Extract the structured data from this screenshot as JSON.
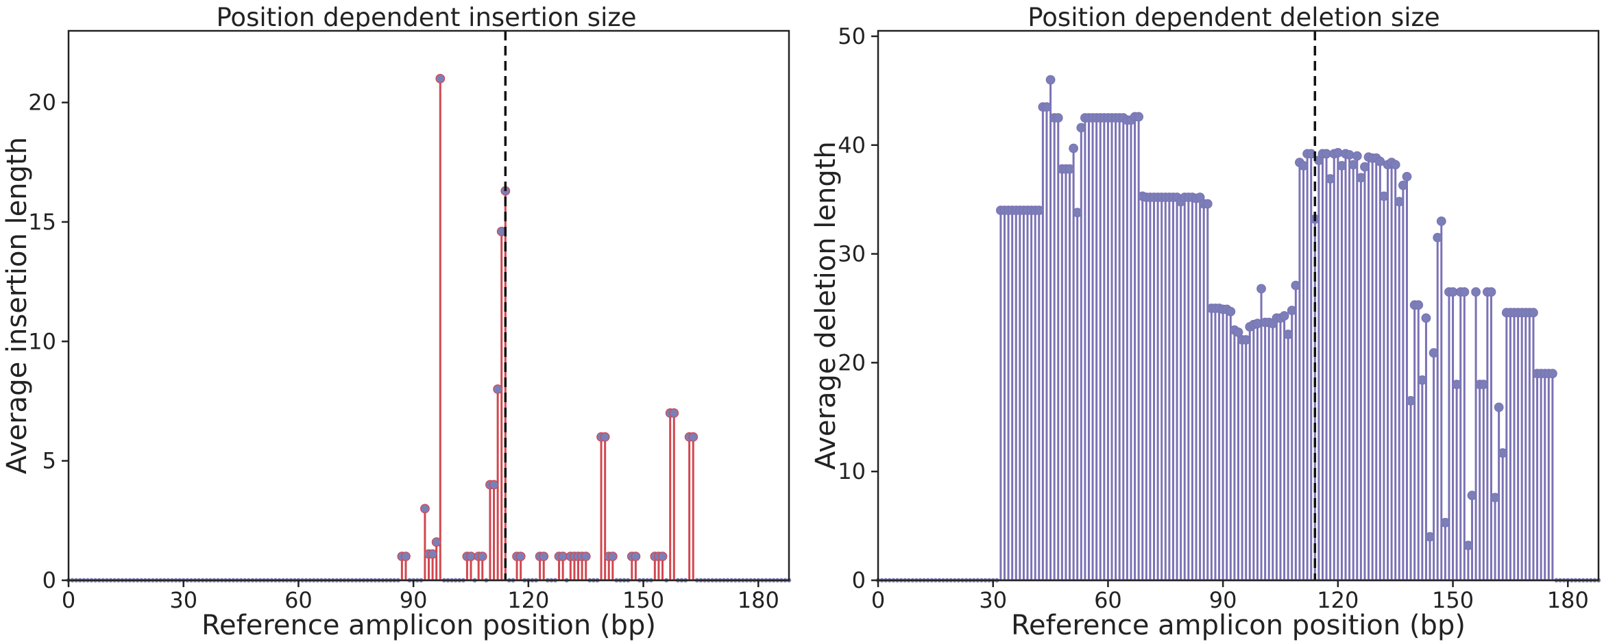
{
  "chart_data": [
    {
      "type": "stem",
      "title": "Position dependent insertion size",
      "xlabel": "Reference amplicon position (bp)",
      "ylabel": "Average insertion length",
      "xlim": [
        0,
        188
      ],
      "ylim": [
        0,
        23
      ],
      "xticks": [
        0,
        30,
        60,
        90,
        120,
        150,
        180
      ],
      "yticks": [
        0,
        5,
        10,
        15,
        20
      ],
      "cut_site": 114,
      "stem_color": "#d1474f",
      "marker_color": "#7b7fb8",
      "grid": false,
      "x_min": 0,
      "x_max": 188,
      "points": [
        [
          87,
          1
        ],
        [
          88,
          1
        ],
        [
          93,
          3
        ],
        [
          94,
          1.1
        ],
        [
          95,
          1.1
        ],
        [
          96,
          1.6
        ],
        [
          97,
          21
        ],
        [
          104,
          1
        ],
        [
          105,
          1
        ],
        [
          107,
          1
        ],
        [
          108,
          1
        ],
        [
          110,
          4
        ],
        [
          111,
          4
        ],
        [
          112,
          8
        ],
        [
          113,
          14.6
        ],
        [
          114,
          16.3
        ],
        [
          117,
          1
        ],
        [
          118,
          1
        ],
        [
          123,
          1
        ],
        [
          124,
          1
        ],
        [
          128,
          1
        ],
        [
          129,
          1
        ],
        [
          131,
          1
        ],
        [
          132,
          1
        ],
        [
          133,
          1
        ],
        [
          134,
          1
        ],
        [
          135,
          1
        ],
        [
          139,
          6
        ],
        [
          140,
          6
        ],
        [
          141,
          1
        ],
        [
          142,
          1
        ],
        [
          147,
          1
        ],
        [
          148,
          1
        ],
        [
          153,
          1
        ],
        [
          154,
          1
        ],
        [
          155,
          1
        ],
        [
          157,
          7
        ],
        [
          158,
          7
        ],
        [
          162,
          6
        ],
        [
          163,
          6
        ]
      ]
    },
    {
      "type": "stem",
      "title": "Position dependent deletion size",
      "xlabel": "Reference amplicon position (bp)",
      "ylabel": "Average deletion length",
      "xlim": [
        0,
        188
      ],
      "ylim": [
        0,
        50.5
      ],
      "xticks": [
        0,
        30,
        60,
        90,
        120,
        150,
        180
      ],
      "yticks": [
        0,
        10,
        20,
        30,
        40,
        50
      ],
      "cut_site": 114,
      "stem_color": "#7b72b5",
      "marker_color": "#7b7fb8",
      "grid": false,
      "x_min": 0,
      "x_max": 188,
      "points": [
        [
          32,
          34
        ],
        [
          33,
          34
        ],
        [
          34,
          34
        ],
        [
          35,
          34
        ],
        [
          36,
          34
        ],
        [
          37,
          34
        ],
        [
          38,
          34
        ],
        [
          39,
          34
        ],
        [
          40,
          34
        ],
        [
          41,
          34
        ],
        [
          42,
          34
        ],
        [
          43,
          43.5
        ],
        [
          44,
          43.5
        ],
        [
          45,
          46
        ],
        [
          46,
          42.5
        ],
        [
          47,
          42.5
        ],
        [
          48,
          37.8
        ],
        [
          49,
          37.8
        ],
        [
          50,
          37.8
        ],
        [
          51,
          39.7
        ],
        [
          52,
          33.8
        ],
        [
          53,
          41.6
        ],
        [
          54,
          42.5
        ],
        [
          55,
          42.5
        ],
        [
          56,
          42.5
        ],
        [
          57,
          42.5
        ],
        [
          58,
          42.5
        ],
        [
          59,
          42.5
        ],
        [
          60,
          42.5
        ],
        [
          61,
          42.5
        ],
        [
          62,
          42.5
        ],
        [
          63,
          42.5
        ],
        [
          64,
          42.5
        ],
        [
          65,
          42.3
        ],
        [
          66,
          42.3
        ],
        [
          67,
          42.6
        ],
        [
          68,
          42.6
        ],
        [
          69,
          35.3
        ],
        [
          70,
          35.2
        ],
        [
          71,
          35.2
        ],
        [
          72,
          35.2
        ],
        [
          73,
          35.2
        ],
        [
          74,
          35.2
        ],
        [
          75,
          35.2
        ],
        [
          76,
          35.2
        ],
        [
          77,
          35.2
        ],
        [
          78,
          35.2
        ],
        [
          79,
          34.8
        ],
        [
          80,
          35.2
        ],
        [
          81,
          35.2
        ],
        [
          82,
          35.2
        ],
        [
          83,
          35.1
        ],
        [
          84,
          35.2
        ],
        [
          85,
          34.6
        ],
        [
          86,
          34.6
        ],
        [
          87,
          25
        ],
        [
          88,
          25
        ],
        [
          89,
          25
        ],
        [
          90,
          24.9
        ],
        [
          91,
          24.9
        ],
        [
          92,
          24.7
        ],
        [
          93,
          23
        ],
        [
          94,
          22.8
        ],
        [
          95,
          22.1
        ],
        [
          96,
          22.1
        ],
        [
          97,
          23.3
        ],
        [
          98,
          23.5
        ],
        [
          99,
          23.6
        ],
        [
          100,
          26.8
        ],
        [
          101,
          23.7
        ],
        [
          102,
          23.7
        ],
        [
          103,
          23.6
        ],
        [
          104,
          24.1
        ],
        [
          105,
          24.1
        ],
        [
          106,
          24.3
        ],
        [
          107,
          22.6
        ],
        [
          108,
          24.8
        ],
        [
          109,
          27.1
        ],
        [
          110,
          38.4
        ],
        [
          111,
          38.1
        ],
        [
          112,
          39.2
        ],
        [
          113,
          39.2
        ],
        [
          114,
          33.2
        ],
        [
          115,
          38.6
        ],
        [
          116,
          39.2
        ],
        [
          117,
          39.2
        ],
        [
          118,
          36.9
        ],
        [
          119,
          39.2
        ],
        [
          120,
          39.3
        ],
        [
          121,
          38.1
        ],
        [
          122,
          39.2
        ],
        [
          123,
          39.1
        ],
        [
          124,
          38.2
        ],
        [
          125,
          39
        ],
        [
          126,
          37
        ],
        [
          127,
          38
        ],
        [
          128,
          38.9
        ],
        [
          129,
          38.8
        ],
        [
          130,
          38.8
        ],
        [
          131,
          38.5
        ],
        [
          132,
          35.3
        ],
        [
          133,
          38.2
        ],
        [
          134,
          38.4
        ],
        [
          135,
          38.2
        ],
        [
          136,
          34.8
        ],
        [
          137,
          36.3
        ],
        [
          138,
          37.1
        ],
        [
          139,
          16.5
        ],
        [
          140,
          25.3
        ],
        [
          141,
          25.3
        ],
        [
          142,
          18.4
        ],
        [
          143,
          24.1
        ],
        [
          144,
          4
        ],
        [
          145,
          20.9
        ],
        [
          146,
          31.5
        ],
        [
          147,
          33
        ],
        [
          148,
          5.3
        ],
        [
          149,
          26.5
        ],
        [
          150,
          26.5
        ],
        [
          151,
          18
        ],
        [
          152,
          26.5
        ],
        [
          153,
          26.5
        ],
        [
          154,
          3.2
        ],
        [
          155,
          7.8
        ],
        [
          156,
          26.5
        ],
        [
          157,
          18
        ],
        [
          158,
          18
        ],
        [
          159,
          26.5
        ],
        [
          160,
          26.5
        ],
        [
          161,
          7.6
        ],
        [
          162,
          15.9
        ],
        [
          163,
          11.7
        ],
        [
          164,
          24.6
        ],
        [
          165,
          24.6
        ],
        [
          166,
          24.6
        ],
        [
          167,
          24.6
        ],
        [
          168,
          24.6
        ],
        [
          169,
          24.6
        ],
        [
          170,
          24.6
        ],
        [
          171,
          24.6
        ],
        [
          172,
          19
        ],
        [
          173,
          19
        ],
        [
          174,
          19
        ],
        [
          175,
          19
        ],
        [
          176,
          19
        ]
      ]
    }
  ]
}
